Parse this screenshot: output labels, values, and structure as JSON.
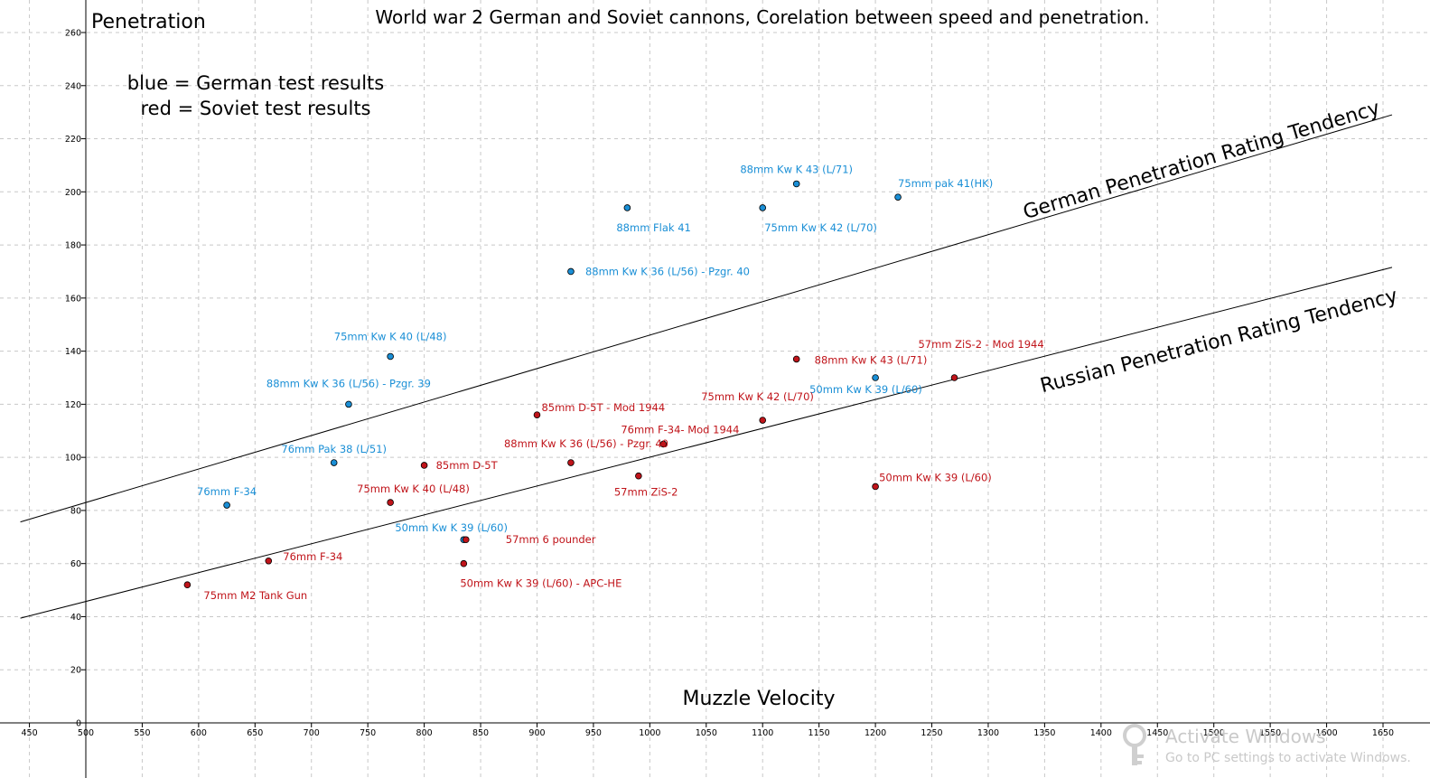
{
  "chart_data": {
    "type": "scatter",
    "title": "World war 2 German and Soviet cannons, Corelation between speed and penetration.",
    "xlabel": "Muzzle Velocity",
    "ylabel": "Penetration",
    "xlim": [
      450,
      1650
    ],
    "ylim": [
      0,
      260
    ],
    "x_ticks": [
      450,
      500,
      550,
      600,
      650,
      700,
      750,
      800,
      850,
      900,
      950,
      1000,
      1050,
      1100,
      1150,
      1200,
      1250,
      1300,
      1350,
      1400,
      1450,
      1500,
      1550,
      1600,
      1650
    ],
    "y_ticks": [
      0,
      20,
      40,
      60,
      80,
      100,
      120,
      140,
      160,
      180,
      200,
      220,
      240,
      260
    ],
    "grid": true,
    "legend_lines": [
      "blue = German test results",
      "red = Soviet test results"
    ],
    "series": [
      {
        "color": "#1a8fd6",
        "label_color": "#1a8fd6",
        "points": [
          {
            "x": 1130,
            "y": 203,
            "label": "88mm Kw K 43 (L/71)"
          },
          {
            "x": 1220,
            "y": 198,
            "label": "75mm pak 41(HK)"
          },
          {
            "x": 980,
            "y": 194,
            "label": "88mm Flak 41"
          },
          {
            "x": 1100,
            "y": 194,
            "label": "75mm Kw K 42 (L/70)"
          },
          {
            "x": 930,
            "y": 170,
            "label": "88mm Kw K 36 (L/56) - Pzgr. 40"
          },
          {
            "x": 770,
            "y": 138,
            "label": "75mm Kw K 40 (L/48)"
          },
          {
            "x": 1200,
            "y": 130,
            "label": "50mm Kw K 39 (L/60)"
          },
          {
            "x": 733,
            "y": 120,
            "label": "88mm Kw K 36 (L/56) - Pzgr. 39"
          },
          {
            "x": 720,
            "y": 98,
            "label": "76mm Pak 38 (L/51)"
          },
          {
            "x": 625,
            "y": 82,
            "label": "76mm F-34"
          },
          {
            "x": 835,
            "y": 69,
            "label": "50mm Kw K 39 (L/60)"
          }
        ]
      },
      {
        "color": "#c0141a",
        "label_color": "#c0141a",
        "points": [
          {
            "x": 1130,
            "y": 137,
            "label": "88mm Kw K 43 (L/71)"
          },
          {
            "x": 1270,
            "y": 130,
            "label": "57mm ZiS-2 - Mod 1944"
          },
          {
            "x": 900,
            "y": 116,
            "label": "85mm D-5T - Mod 1944"
          },
          {
            "x": 1100,
            "y": 114,
            "label": "75mm Kw K 42 (L/70)"
          },
          {
            "x": 1012,
            "y": 105,
            "label": "76mm F-34- Mod 1944"
          },
          {
            "x": 930,
            "y": 98,
            "label": "88mm Kw K 36 (L/56) - Pzgr. 40"
          },
          {
            "x": 800,
            "y": 97,
            "label": "85mm D-5T"
          },
          {
            "x": 990,
            "y": 93,
            "label": "57mm ZiS-2"
          },
          {
            "x": 1200,
            "y": 89,
            "label": "50mm Kw K 39 (L/60)"
          },
          {
            "x": 770,
            "y": 83,
            "label": "75mm Kw K 40 (L/48)"
          },
          {
            "x": 837,
            "y": 69,
            "label": "57mm 6 pounder"
          },
          {
            "x": 662,
            "y": 61,
            "label": "76mm F-34"
          },
          {
            "x": 835,
            "y": 60,
            "label": "50mm Kw K 39 (L/60) - APC-HE"
          },
          {
            "x": 590,
            "y": 52,
            "label": "75mm M2 Tank Gun"
          }
        ]
      }
    ],
    "trend_lines": [
      {
        "label": "German Penetration Rating Tendency",
        "x_range": [
          450,
          1650
        ],
        "y_range": [
          76.7,
          228
        ]
      },
      {
        "label": "Russian Penetration Rating Tendency",
        "x_range": [
          450,
          1650
        ],
        "y_range": [
          40.3,
          170.7
        ]
      }
    ]
  },
  "watermark": {
    "line1": "Activate Windows",
    "line2": "Go to PC settings to activate Windows."
  }
}
